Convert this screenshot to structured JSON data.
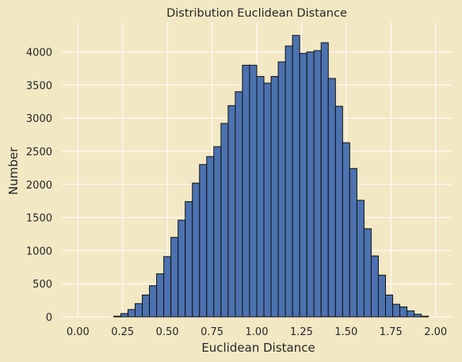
{
  "chart_data": {
    "type": "bar",
    "title": "Distribution Euclidean Distance",
    "xlabel": "Euclidean Distance",
    "ylabel": "Number",
    "xlim": [
      -0.09,
      2.09
    ],
    "ylim": [
      0,
      4450
    ],
    "xticks": [
      "0.00",
      "0.25",
      "0.50",
      "0.75",
      "1.00",
      "1.25",
      "1.50",
      "1.75",
      "2.00"
    ],
    "yticks": [
      "0",
      "500",
      "1000",
      "1500",
      "2000",
      "2500",
      "3000",
      "3500",
      "4000"
    ],
    "bin_width": 0.04,
    "bin_starts": [
      0.2,
      0.24,
      0.28,
      0.32,
      0.36,
      0.4,
      0.44,
      0.48,
      0.52,
      0.56,
      0.6,
      0.64,
      0.68,
      0.72,
      0.76,
      0.8,
      0.84,
      0.88,
      0.92,
      0.96,
      1.0,
      1.04,
      1.08,
      1.12,
      1.16,
      1.2,
      1.24,
      1.28,
      1.32,
      1.36,
      1.4,
      1.44,
      1.48,
      1.52,
      1.56,
      1.6,
      1.64,
      1.68,
      1.72,
      1.76,
      1.8,
      1.84,
      1.88,
      1.92
    ],
    "values": [
      10,
      50,
      110,
      200,
      330,
      470,
      650,
      910,
      1200,
      1460,
      1740,
      2020,
      2300,
      2420,
      2570,
      2920,
      3190,
      3400,
      3800,
      3800,
      3630,
      3530,
      3630,
      3850,
      4090,
      4250,
      3980,
      4000,
      4020,
      4140,
      3600,
      3180,
      2630,
      2240,
      1760,
      1330,
      920,
      630,
      330,
      190,
      150,
      90,
      40,
      10
    ],
    "bar_color": "#4c72b0",
    "grid": true,
    "legend": "none"
  }
}
